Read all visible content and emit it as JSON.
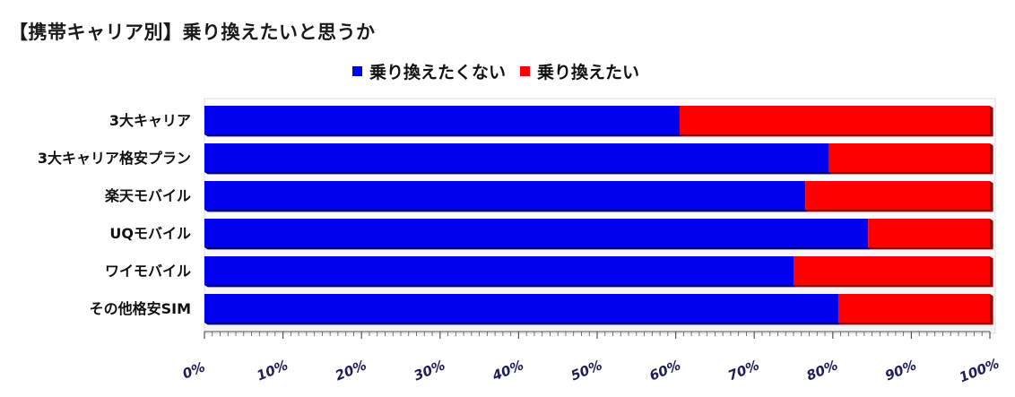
{
  "title": "【携帯キャリア別】乗り換えたいと思うか",
  "colors": {
    "no_switch": "#0000ee",
    "switch": "#ff0000"
  },
  "chart_data": {
    "type": "bar",
    "orientation": "horizontal",
    "stacked": true,
    "categories": [
      "3大キャリア",
      "3大キャリア格安プラン",
      "楽天モバイル",
      "UQモバイル",
      "ワイモバイル",
      "その他格安SIM"
    ],
    "series": [
      {
        "name": "乗り換えたくない",
        "values": [
          60.5,
          79.5,
          76.5,
          84.5,
          75.0,
          80.7
        ]
      },
      {
        "name": "乗り換えたい",
        "values": [
          39.5,
          20.5,
          23.5,
          15.5,
          25.0,
          19.3
        ]
      }
    ],
    "xlim": [
      0,
      100
    ],
    "xticks": [
      "0%",
      "10%",
      "20%",
      "30%",
      "40%",
      "50%",
      "60%",
      "70%",
      "80%",
      "90%",
      "100%"
    ],
    "legend_position": "top",
    "grid": false
  }
}
